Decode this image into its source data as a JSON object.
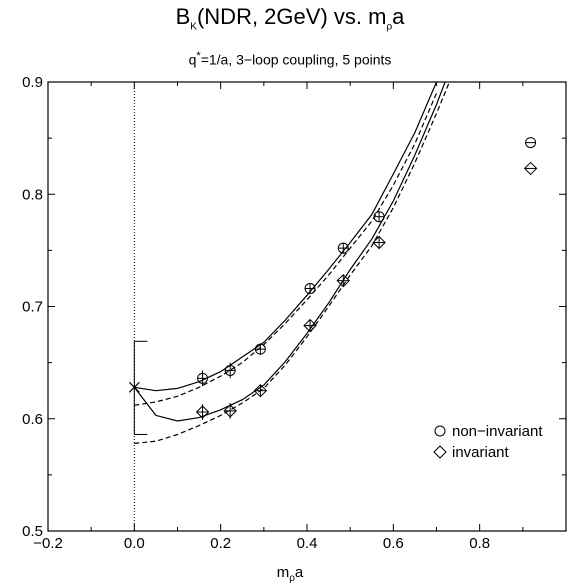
{
  "title": {
    "main": "B",
    "main_sub": "K",
    "main_rest": "(NDR, 2GeV) vs. m",
    "main_sub2": "ρ",
    "main_tail": "a"
  },
  "subtitle": {
    "q": "q",
    "star": "*",
    "rest": "=1/a, 3−loop coupling, 5 points"
  },
  "xlabel": {
    "m": "m",
    "sub": "ρ",
    "a": "a"
  },
  "chart_data": {
    "type": "scatter",
    "title": "B_K(NDR, 2GeV) vs. m_ρa",
    "subtitle": "q*=1/a, 3−loop coupling, 5 points",
    "xlabel": "m_ρa",
    "ylabel": "",
    "xlim": [
      -0.2,
      1.0
    ],
    "ylim": [
      0.5,
      0.9
    ],
    "xticks": [
      -0.2,
      0.0,
      0.2,
      0.4,
      0.6,
      0.8
    ],
    "xtick_labels": [
      "−0.2",
      "0.0",
      "0.2",
      "0.4",
      "0.6",
      "0.8"
    ],
    "yticks": [
      0.5,
      0.6,
      0.7,
      0.8,
      0.9
    ],
    "ytick_labels": [
      "0.5",
      "0.6",
      "0.7",
      "0.8",
      "0.9"
    ],
    "legend_position": "bottom-right",
    "vertical_reference_line_x": 0.0,
    "series": [
      {
        "name": "non−invariant",
        "marker": "circle",
        "points": [
          {
            "x": 0.158,
            "y": 0.636,
            "err": 0.007
          },
          {
            "x": 0.222,
            "y": 0.643,
            "err": 0.007
          },
          {
            "x": 0.292,
            "y": 0.662,
            "err": 0.005
          },
          {
            "x": 0.407,
            "y": 0.716,
            "err": 0.005
          },
          {
            "x": 0.484,
            "y": 0.752,
            "err": 0.005
          },
          {
            "x": 0.567,
            "y": 0.78,
            "err": 0.005
          },
          {
            "x": 0.918,
            "y": 0.846,
            "err": 0.0
          }
        ]
      },
      {
        "name": "invariant",
        "marker": "diamond",
        "points": [
          {
            "x": 0.158,
            "y": 0.606,
            "err": 0.007
          },
          {
            "x": 0.222,
            "y": 0.607,
            "err": 0.007
          },
          {
            "x": 0.292,
            "y": 0.625,
            "err": 0.005
          },
          {
            "x": 0.407,
            "y": 0.683,
            "err": 0.005
          },
          {
            "x": 0.484,
            "y": 0.723,
            "err": 0.005
          },
          {
            "x": 0.567,
            "y": 0.757,
            "err": 0.005
          },
          {
            "x": 0.918,
            "y": 0.823,
            "err": 0.0
          }
        ]
      }
    ],
    "extrapolation": {
      "x": 0.0,
      "y": 0.628,
      "err_low": 0.586,
      "err_high": 0.669,
      "marker": "cross"
    },
    "fit_curves": [
      {
        "style": "solid",
        "x": [
          0.0,
          0.05,
          0.1,
          0.15,
          0.2,
          0.25,
          0.3,
          0.35,
          0.4,
          0.45,
          0.5,
          0.55,
          0.6,
          0.65,
          0.7
        ],
        "y": [
          0.628,
          0.625,
          0.627,
          0.633,
          0.642,
          0.655,
          0.668,
          0.688,
          0.71,
          0.733,
          0.757,
          0.782,
          0.818,
          0.855,
          0.9
        ]
      },
      {
        "style": "dashed",
        "x": [
          0.0,
          0.05,
          0.1,
          0.15,
          0.2,
          0.25,
          0.3,
          0.35,
          0.4,
          0.45,
          0.5,
          0.55,
          0.6,
          0.65,
          0.7
        ],
        "y": [
          0.612,
          0.615,
          0.62,
          0.628,
          0.638,
          0.65,
          0.666,
          0.685,
          0.706,
          0.728,
          0.752,
          0.776,
          0.808,
          0.845,
          0.89
        ]
      },
      {
        "style": "solid",
        "x": [
          0.0,
          0.05,
          0.1,
          0.15,
          0.2,
          0.25,
          0.3,
          0.35,
          0.4,
          0.45,
          0.5,
          0.55,
          0.6,
          0.65,
          0.7,
          0.72
        ],
        "y": [
          0.628,
          0.603,
          0.598,
          0.601,
          0.608,
          0.617,
          0.63,
          0.651,
          0.676,
          0.703,
          0.733,
          0.76,
          0.794,
          0.835,
          0.88,
          0.9
        ]
      },
      {
        "style": "dashed",
        "x": [
          0.0,
          0.05,
          0.1,
          0.15,
          0.2,
          0.25,
          0.3,
          0.35,
          0.4,
          0.45,
          0.5,
          0.55,
          0.6,
          0.65,
          0.7,
          0.73
        ],
        "y": [
          0.578,
          0.58,
          0.586,
          0.594,
          0.603,
          0.614,
          0.627,
          0.648,
          0.673,
          0.7,
          0.728,
          0.754,
          0.788,
          0.828,
          0.872,
          0.9
        ]
      }
    ]
  }
}
